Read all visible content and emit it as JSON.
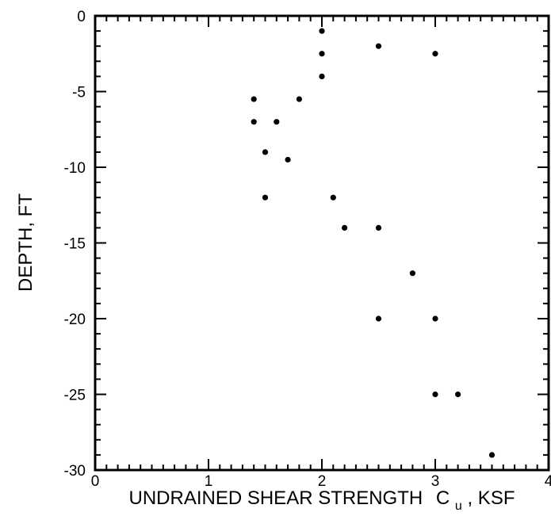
{
  "chart_data": {
    "type": "scatter",
    "title": "",
    "xlabel": "UNDRAINED SHEAR STRENGTH",
    "xlabel_symbol": "C",
    "xlabel_subscript": "u",
    "xlabel_units": ", KSF",
    "ylabel": "DEPTH, FT",
    "xlim": [
      0,
      4
    ],
    "ylim": [
      -30,
      0
    ],
    "grid": false,
    "x_ticks": [
      "0",
      "1",
      "2",
      "3",
      "4"
    ],
    "y_ticks": [
      "0",
      "-5",
      "-10",
      "-15",
      "-20",
      "-25",
      "-30"
    ],
    "points": [
      {
        "x": 2.0,
        "y": -1.0
      },
      {
        "x": 2.5,
        "y": -2.0
      },
      {
        "x": 2.0,
        "y": -2.5
      },
      {
        "x": 3.0,
        "y": -2.5
      },
      {
        "x": 2.0,
        "y": -4.0
      },
      {
        "x": 1.4,
        "y": -5.5
      },
      {
        "x": 1.8,
        "y": -5.5
      },
      {
        "x": 1.4,
        "y": -7.0
      },
      {
        "x": 1.6,
        "y": -7.0
      },
      {
        "x": 1.5,
        "y": -9.0
      },
      {
        "x": 1.7,
        "y": -9.5
      },
      {
        "x": 1.5,
        "y": -12.0
      },
      {
        "x": 2.1,
        "y": -12.0
      },
      {
        "x": 2.2,
        "y": -14.0
      },
      {
        "x": 2.5,
        "y": -14.0
      },
      {
        "x": 2.8,
        "y": -17.0
      },
      {
        "x": 2.5,
        "y": -20.0
      },
      {
        "x": 3.0,
        "y": -20.0
      },
      {
        "x": 3.0,
        "y": -25.0
      },
      {
        "x": 3.2,
        "y": -25.0
      },
      {
        "x": 3.5,
        "y": -29.0
      }
    ]
  }
}
